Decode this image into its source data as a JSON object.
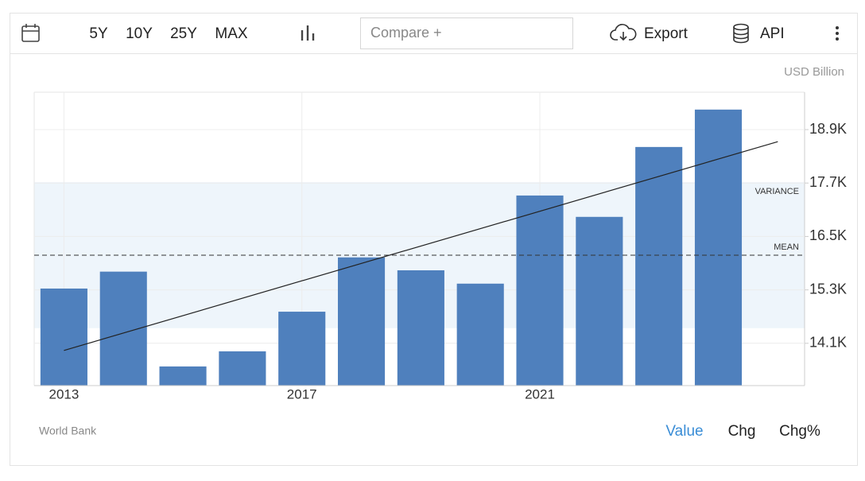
{
  "toolbar": {
    "ranges": [
      "5Y",
      "10Y",
      "25Y",
      "MAX"
    ],
    "compare_placeholder": "Compare +",
    "export": "Export",
    "api": "API"
  },
  "chart_data": {
    "type": "bar",
    "units_label": "USD Billion",
    "source": "World Bank",
    "x": [
      2013,
      2014,
      2015,
      2016,
      2017,
      2018,
      2019,
      2020,
      2021,
      2022,
      2023,
      2024
    ],
    "values": [
      15330,
      15710,
      13580,
      13920,
      14810,
      16030,
      15740,
      15440,
      17420,
      16940,
      18510,
      19350
    ],
    "color": "#4f80bd",
    "xlim": [
      2012.5,
      2025.45
    ],
    "xticks": [
      2013,
      2017,
      2021
    ],
    "ylim": [
      13150,
      19740
    ],
    "yticks": [
      {
        "value": 14100,
        "label": "14.1K"
      },
      {
        "value": 15300,
        "label": "15.3K"
      },
      {
        "value": 16500,
        "label": "16.5K"
      },
      {
        "value": 17700,
        "label": "17.7K"
      },
      {
        "value": 18900,
        "label": "18.9K"
      }
    ],
    "grid": true,
    "mean": 16080,
    "mean_label": "MEAN",
    "variance_band": [
      14440,
      17720
    ],
    "variance_label": "VARIANCE",
    "trend": {
      "x": [
        2013,
        2025
      ],
      "values": [
        13940,
        18630
      ]
    }
  },
  "footer": {
    "tabs": [
      "Value",
      "Chg",
      "Chg%"
    ]
  }
}
